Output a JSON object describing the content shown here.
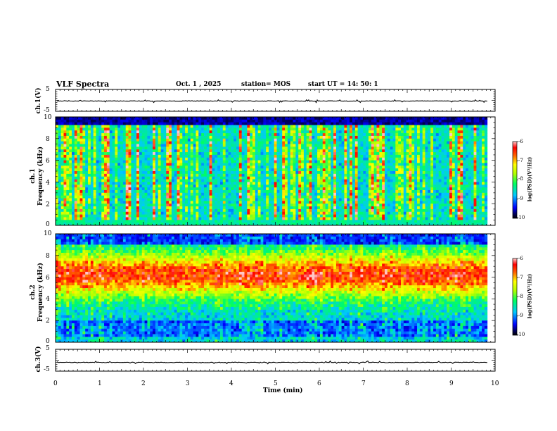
{
  "header": {
    "title": "VLF Spectra",
    "date": "Oct. 1 , 2025",
    "station": "station= MOS",
    "start": "start UT =  14: 50: 1"
  },
  "chart_data": [
    {
      "type": "line",
      "name": "ch1-waveform",
      "ylabel": "ch.1(V)",
      "ylim": [
        -5,
        5
      ],
      "yticks": [
        "5",
        "-5"
      ],
      "baseline": -0.3
    },
    {
      "type": "heatmap",
      "name": "ch1-spectrogram",
      "ylabel": "ch.1\nFrequency (kHz)",
      "ylabel_line1": "ch.1",
      "ylabel_line2": "Frequency (kHz)",
      "ylim": [
        0,
        10
      ],
      "yticks": [
        "0",
        "2",
        "4",
        "6",
        "8",
        "10"
      ],
      "colorbar": {
        "label": "log(PSD)(V²/Hz)",
        "range": [
          -10,
          -6
        ],
        "ticks": [
          "-6",
          "-7",
          "-8",
          "-9",
          "-10"
        ]
      }
    },
    {
      "type": "heatmap",
      "name": "ch2-spectrogram",
      "ylabel_line1": "ch.2",
      "ylabel_line2": "Frequency (kHz)",
      "ylim": [
        0,
        10
      ],
      "yticks": [
        "0",
        "2",
        "4",
        "6",
        "8",
        "10"
      ],
      "colorbar": {
        "label": "log(PSD)(V²/Hz)",
        "range": [
          -10,
          -6
        ],
        "ticks": [
          "-6",
          "-7",
          "-8",
          "-9",
          "-10"
        ]
      }
    },
    {
      "type": "line",
      "name": "ch3-waveform",
      "ylabel": "ch.3(V)",
      "ylim": [
        -5,
        5
      ],
      "yticks": [
        "5",
        "-5"
      ],
      "baseline": -1.0
    }
  ],
  "xaxis": {
    "label": "Time  (min)",
    "range": [
      0,
      10
    ],
    "ticks": [
      "0",
      "1",
      "2",
      "3",
      "4",
      "5",
      "6",
      "7",
      "8",
      "9",
      "10"
    ],
    "data_end": 9.82
  },
  "colors": {
    "frame": "#000000",
    "background": "#ffffff"
  }
}
